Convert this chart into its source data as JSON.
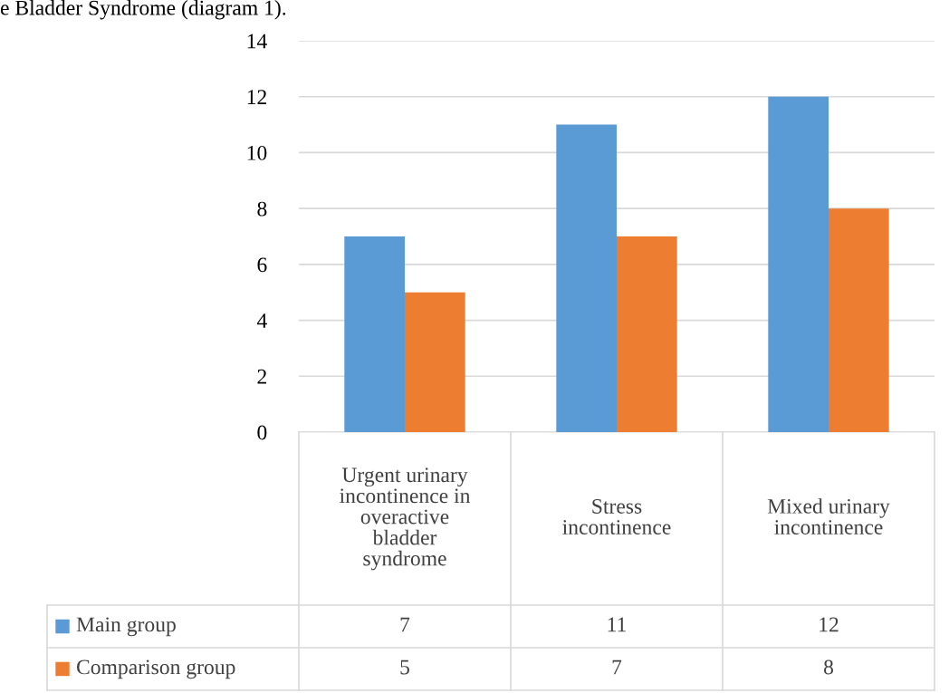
{
  "chart_data": {
    "type": "bar",
    "categories": [
      "Urgent urinary incontinence in overactive bladder syndrome",
      "Stress incontinence",
      "Mixed urinary incontinence"
    ],
    "series": [
      {
        "name": "Main group",
        "color": "#5b9bd5",
        "values": [
          7,
          11,
          12
        ]
      },
      {
        "name": "Comparison group",
        "color": "#ed7d31",
        "values": [
          5,
          7,
          8
        ]
      }
    ],
    "ylim": [
      0,
      14
    ],
    "yticks": [
      0,
      2,
      4,
      6,
      8,
      10,
      12,
      14
    ],
    "grid": "y",
    "data_labels": true,
    "legend": "bottom",
    "annotations": [
      "e Bladder Syndrome (diagram 1)."
    ]
  }
}
